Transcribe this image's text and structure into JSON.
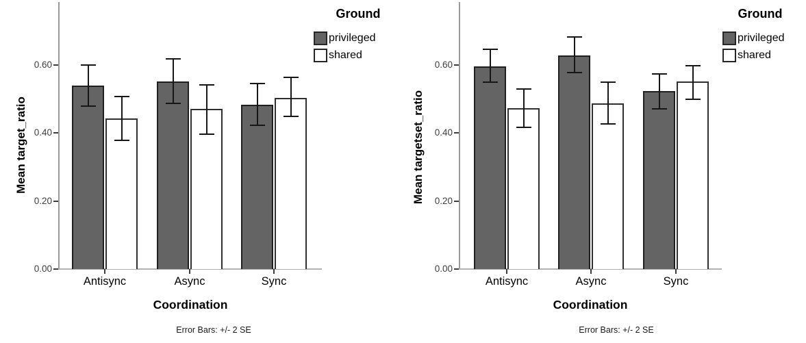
{
  "colors": {
    "axis_line": "#9a9a9a",
    "baseline": "#b0b0b0",
    "tick": "#3c3c3c",
    "error_bar": "#161616",
    "privileged_fill": "#646464",
    "shared_fill": "#ffffff"
  },
  "chart_data": [
    {
      "type": "bar",
      "ylabel": "Mean target_ratio",
      "xlabel": "Coordination",
      "categories": [
        "Antisync",
        "Async",
        "Sync"
      ],
      "yticks": [
        "0.00",
        "0.20",
        "0.40",
        "0.60"
      ],
      "ytick_values": [
        0,
        0.2,
        0.4,
        0.6
      ],
      "ylim": [
        0,
        0.785
      ],
      "grid": false,
      "legend_title": "Ground",
      "legend_position": "top-right",
      "footnote": "Error Bars: +/- 2 SE",
      "error_bar_meaning": "+/- 2 SE",
      "series": [
        {
          "name": "privileged",
          "fill": "#646464",
          "stroke": "#1f1f1f",
          "values": [
            0.539,
            0.551,
            0.482
          ],
          "err_upper": [
            0.601,
            0.62,
            0.547
          ],
          "err_lower": [
            0.476,
            0.484,
            0.42
          ]
        },
        {
          "name": "shared",
          "fill": "#ffffff",
          "stroke": "#2f2f2f",
          "values": [
            0.442,
            0.47,
            0.504
          ],
          "err_upper": [
            0.51,
            0.544,
            0.566
          ],
          "err_lower": [
            0.377,
            0.395,
            0.447
          ]
        }
      ]
    },
    {
      "type": "bar",
      "ylabel": "Mean targetset_ratio",
      "xlabel": "Coordination",
      "categories": [
        "Antisync",
        "Async",
        "Sync"
      ],
      "yticks": [
        "0.00",
        "0.20",
        "0.40",
        "0.60"
      ],
      "ytick_values": [
        0,
        0.2,
        0.4,
        0.6
      ],
      "ylim": [
        0,
        0.785
      ],
      "grid": false,
      "legend_title": "Ground",
      "legend_position": "top-right",
      "footnote": "Error Bars: +/- 2 SE",
      "error_bar_meaning": "+/- 2 SE",
      "series": [
        {
          "name": "privileged",
          "fill": "#646464",
          "stroke": "#1f1f1f",
          "values": [
            0.596,
            0.628,
            0.523
          ],
          "err_upper": [
            0.648,
            0.685,
            0.576
          ],
          "err_lower": [
            0.547,
            0.575,
            0.469
          ]
        },
        {
          "name": "shared",
          "fill": "#ffffff",
          "stroke": "#2f2f2f",
          "values": [
            0.473,
            0.487,
            0.551
          ],
          "err_upper": [
            0.531,
            0.551,
            0.6
          ],
          "err_lower": [
            0.415,
            0.425,
            0.497
          ]
        }
      ]
    }
  ]
}
